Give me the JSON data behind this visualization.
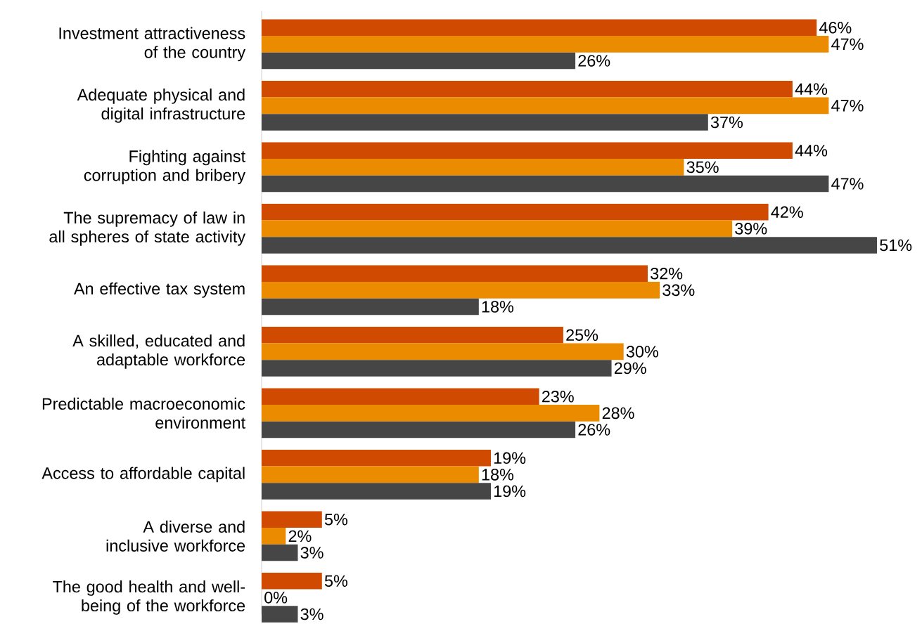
{
  "chart_data": {
    "type": "bar",
    "orientation": "horizontal",
    "categories": [
      "Investment attractiveness of the country",
      "Adequate physical and digital infrastructure",
      "Fighting against corruption and bribery",
      "The supremacy of law in all spheres of state activity",
      "An effective tax system",
      "A skilled, educated and adaptable workforce",
      "Predictable macroeconomic environment",
      "Access to affordable capital",
      "A diverse and inclusive workforce",
      "The good health and well-being of the workforce"
    ],
    "series": [
      {
        "color": "#d04a02",
        "values": [
          46,
          44,
          44,
          42,
          32,
          25,
          23,
          19,
          5,
          5
        ],
        "value_labels": [
          "46%",
          "44%",
          "44%",
          "42%",
          "32%",
          "25%",
          "23%",
          "19%",
          "5%",
          "5%"
        ]
      },
      {
        "color": "#eb8c00",
        "values": [
          47,
          47,
          35,
          39,
          33,
          30,
          28,
          18,
          2,
          0
        ],
        "value_labels": [
          "47%",
          "47%",
          "35%",
          "39%",
          "33%",
          "30%",
          "28%",
          "18%",
          "2%",
          "0%"
        ]
      },
      {
        "color": "#464646",
        "values": [
          26,
          37,
          47,
          51,
          18,
          29,
          26,
          19,
          3,
          3
        ],
        "value_labels": [
          "26%",
          "37%",
          "47%",
          "51%",
          "18%",
          "29%",
          "26%",
          "19%",
          "3%",
          "3%"
        ]
      }
    ]
  }
}
